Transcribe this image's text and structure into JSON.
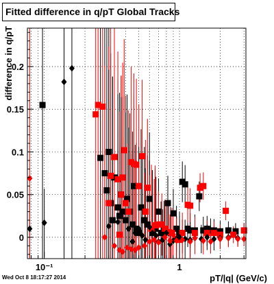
{
  "window_title": "Fitted difference in q/pT  Global Tracks",
  "timestamp": "Wed Oct  8 18:17:27 2014",
  "chart_data": {
    "type": "scatter",
    "title": "Fitted difference in q/pT  Global Tracks",
    "xlabel": "pT/|q| (GeV/c)",
    "ylabel": "difference in q/pT",
    "x_scale": "log",
    "xlim": [
      0.075,
      3.1
    ],
    "ylim": [
      -0.025,
      0.245
    ],
    "x_ticks": [
      {
        "value": 0.1,
        "label": "10⁻¹"
      },
      {
        "value": 1,
        "label": "1"
      }
    ],
    "y_ticks": [
      {
        "value": 0,
        "label": "0"
      },
      {
        "value": 0.05,
        "label": "0.05"
      },
      {
        "value": 0.1,
        "label": "0.1"
      },
      {
        "value": 0.15,
        "label": "0.15"
      },
      {
        "value": 0.2,
        "label": "0.2"
      }
    ],
    "grid": true,
    "colors": {
      "black": "#000000",
      "red": "#ff0000"
    },
    "series": [
      {
        "marker": "square",
        "color": "#000000",
        "points": [
          [
            0.097,
            0.155
          ],
          [
            0.26,
            0.093
          ],
          [
            0.28,
            0.075
          ],
          [
            0.29,
            0.055
          ],
          [
            0.3,
            0.1
          ],
          [
            0.31,
            0.04
          ],
          [
            0.32,
            0.02
          ],
          [
            0.33,
            0.07
          ],
          [
            0.35,
            0.035
          ],
          [
            0.36,
            0.025
          ],
          [
            0.37,
            0.05
          ],
          [
            0.38,
            0.03
          ],
          [
            0.4,
            0.02
          ],
          [
            0.41,
            0.045
          ],
          [
            0.43,
            0.03
          ],
          [
            0.45,
            0.015
          ],
          [
            0.46,
            0.06
          ],
          [
            0.48,
            0.01
          ],
          [
            0.5,
            0.005
          ],
          [
            0.52,
            0.035
          ],
          [
            0.55,
            0.02
          ],
          [
            0.58,
            0.015
          ],
          [
            0.6,
            0.045
          ],
          [
            0.63,
            0.005
          ],
          [
            0.66,
            0.01
          ],
          [
            0.7,
            0.03
          ],
          [
            0.73,
            0.005
          ],
          [
            0.77,
            0.008
          ],
          [
            0.82,
            0.04
          ],
          [
            0.86,
            0.005
          ],
          [
            0.9,
            0.028
          ],
          [
            0.95,
            0.01
          ],
          [
            1.0,
            0.005
          ],
          [
            1.05,
            0.065
          ],
          [
            1.1,
            0.062
          ],
          [
            1.15,
            0.01
          ],
          [
            1.2,
            0.008
          ],
          [
            1.3,
            0.008
          ],
          [
            1.4,
            0.048
          ],
          [
            1.5,
            0.008
          ],
          [
            1.6,
            0.01
          ],
          [
            1.7,
            0.008
          ],
          [
            1.8,
            0.008
          ],
          [
            2.0,
            0.007
          ],
          [
            2.3,
            0.008
          ],
          [
            2.6,
            0.007
          ],
          [
            3.0,
            0.008
          ]
        ]
      },
      {
        "marker": "square",
        "color": "#ff0000",
        "points": [
          [
            0.24,
            0.144
          ],
          [
            0.25,
            0.155
          ],
          [
            0.27,
            0.153
          ],
          [
            0.3,
            0.04
          ],
          [
            0.31,
            0.072
          ],
          [
            0.33,
            0.094
          ],
          [
            0.35,
            0.068
          ],
          [
            0.36,
            0.003
          ],
          [
            0.37,
            0.05
          ],
          [
            0.38,
            0.07
          ],
          [
            0.39,
            0.102
          ],
          [
            0.4,
            0.04
          ],
          [
            0.42,
            0.03
          ],
          [
            0.44,
            0.088
          ],
          [
            0.46,
            0.086
          ],
          [
            0.48,
            0.085
          ],
          [
            0.5,
            0.06
          ],
          [
            0.53,
            0.095
          ],
          [
            0.56,
            0.03
          ],
          [
            0.58,
            0.058
          ],
          [
            0.62,
            0.01
          ],
          [
            0.66,
            0.014
          ],
          [
            0.7,
            0.015
          ],
          [
            0.74,
            0.015
          ],
          [
            0.78,
            0.01
          ],
          [
            0.83,
            0.006
          ],
          [
            0.88,
            0.005
          ],
          [
            0.95,
            -0.002
          ],
          [
            1.0,
            -0.003
          ],
          [
            1.05,
            0.005
          ],
          [
            1.15,
            0.038
          ],
          [
            1.2,
            0.037
          ],
          [
            1.3,
            0.005
          ],
          [
            1.42,
            0.058
          ],
          [
            1.5,
            0.06
          ],
          [
            1.6,
            0.005
          ],
          [
            1.8,
            0.005
          ],
          [
            2.0,
            0.003
          ],
          [
            2.2,
            0.031
          ],
          [
            2.5,
            0.003
          ],
          [
            3.0,
            0.008
          ]
        ]
      },
      {
        "marker": "diamond",
        "color": "#000000",
        "points": [
          [
            0.078,
            0.01
          ],
          [
            0.1,
            0.017
          ],
          [
            0.14,
            0.182
          ],
          [
            0.16,
            0.198
          ],
          [
            0.3,
            0.013
          ],
          [
            0.32,
            0.02
          ],
          [
            0.35,
            0.018
          ],
          [
            0.37,
            0.025
          ],
          [
            0.4,
            0.02
          ],
          [
            0.42,
            0.01
          ],
          [
            0.45,
            -0.005
          ],
          [
            0.47,
            0.005
          ],
          [
            0.5,
            0.01
          ],
          [
            0.53,
            0.002
          ],
          [
            0.56,
            -0.003
          ],
          [
            0.6,
            0.012
          ],
          [
            0.63,
            0.005
          ],
          [
            0.67,
            0.002
          ],
          [
            0.7,
            -0.005
          ],
          [
            0.75,
            -0.003
          ],
          [
            0.8,
            0.005
          ],
          [
            0.85,
            -0.008
          ],
          [
            0.9,
            -0.004
          ],
          [
            0.95,
            -0.002
          ],
          [
            1.0,
            0.0
          ],
          [
            1.1,
            -0.002
          ],
          [
            1.2,
            -0.003
          ],
          [
            1.3,
            -0.001
          ],
          [
            1.45,
            -0.002
          ],
          [
            1.6,
            0.0
          ],
          [
            1.8,
            -0.002
          ],
          [
            2.0,
            -0.001
          ],
          [
            2.3,
            0.0
          ],
          [
            2.7,
            -0.001
          ]
        ]
      },
      {
        "marker": "diamond",
        "color": "#ff0000",
        "points": [
          [
            0.078,
            0.069
          ],
          [
            0.28,
            0.0
          ],
          [
            0.33,
            -0.01
          ],
          [
            0.36,
            -0.015
          ],
          [
            0.38,
            -0.017
          ],
          [
            0.41,
            -0.012
          ],
          [
            0.44,
            -0.014
          ],
          [
            0.47,
            -0.015
          ],
          [
            0.5,
            -0.012
          ],
          [
            0.55,
            -0.01
          ],
          [
            0.6,
            -0.005
          ],
          [
            0.65,
            -0.003
          ],
          [
            0.7,
            -0.006
          ],
          [
            0.78,
            0.0
          ],
          [
            0.85,
            -0.004
          ],
          [
            0.9,
            0.003
          ],
          [
            0.95,
            -0.004
          ],
          [
            1.05,
            -0.003
          ],
          [
            1.2,
            -0.005
          ],
          [
            1.3,
            -0.001
          ],
          [
            1.5,
            -0.004
          ],
          [
            1.7,
            -0.005
          ],
          [
            2.0,
            -0.002
          ],
          [
            2.3,
            -0.001
          ],
          [
            2.7,
            -0.002
          ],
          [
            3.0,
            -0.002
          ]
        ]
      }
    ],
    "error_bar_mode": "large vertical error bars on low-pT points, shrinking with pT"
  }
}
